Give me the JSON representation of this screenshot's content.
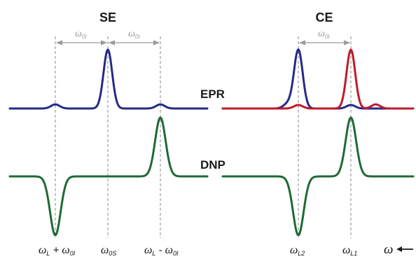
{
  "titles": {
    "se": "SE",
    "ce": "CE"
  },
  "row_labels": {
    "epr": "EPR",
    "dnp": "DNP"
  },
  "spacing": {
    "se": {
      "symbol": "ω",
      "sub": "0I"
    },
    "ce": {
      "symbol": "ω",
      "sub": "0I"
    }
  },
  "axis_labels": {
    "se_left": {
      "symbol": "ω",
      "sub": "L",
      "op": " + ",
      "symbol2": "ω",
      "sub2": "0I"
    },
    "se_mid": {
      "symbol": "ω",
      "sub": "0S"
    },
    "se_right": {
      "symbol": "ω",
      "sub": "L",
      "op": " - ",
      "symbol2": "ω",
      "sub2": "0I"
    },
    "ce_left": {
      "symbol": "ω",
      "sub": "L2"
    },
    "ce_right": {
      "symbol": "ω",
      "sub": "L1"
    },
    "omega": {
      "symbol": "ω"
    }
  },
  "colors": {
    "blue": "#252a86",
    "red": "#c01a2b",
    "green": "#1e6a34",
    "guide": "#8a8a8a",
    "arrow": "#9a9a9a",
    "text": "#1a1a1a"
  },
  "chart_data": {
    "type": "line",
    "title": "",
    "xlabel": "ω",
    "ylabel": "",
    "panels": [
      {
        "name": "SE",
        "series": [
          {
            "name": "EPR",
            "color": "blue",
            "peaks": [
              {
                "x": -1,
                "amp": 0.07
              },
              {
                "x": 0,
                "amp": 1.0
              },
              {
                "x": 1,
                "amp": 0.07
              }
            ]
          },
          {
            "name": "DNP",
            "color": "green",
            "peaks": [
              {
                "x": -1,
                "amp": -1.0
              },
              {
                "x": 1,
                "amp": 1.0
              }
            ]
          }
        ]
      },
      {
        "name": "CE",
        "series": [
          {
            "name": "EPR",
            "color": "blue",
            "peaks": [
              {
                "x": -1.4,
                "amp": 0.08
              },
              {
                "x": -1,
                "amp": 1.0
              },
              {
                "x": 1,
                "amp": 0.06
              }
            ]
          },
          {
            "name": "EPR",
            "color": "red",
            "peaks": [
              {
                "x": -1,
                "amp": 0.06
              },
              {
                "x": 1,
                "amp": 1.0
              },
              {
                "x": 1.95,
                "amp": 0.07
              }
            ]
          },
          {
            "name": "DNP",
            "color": "green",
            "peaks": [
              {
                "x": -1,
                "amp": -1.0
              },
              {
                "x": 1,
                "amp": 1.0
              }
            ]
          }
        ]
      }
    ]
  }
}
